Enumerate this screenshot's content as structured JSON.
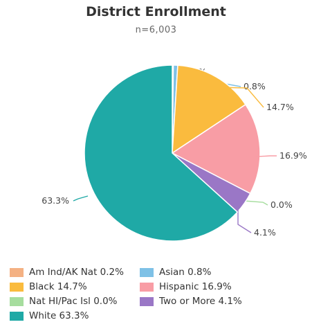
{
  "chart_data": {
    "type": "pie",
    "title": "District Enrollment",
    "subtitle": "n=6,003",
    "slices": [
      {
        "name": "Am Ind/AK Nat",
        "value": 0.2,
        "label": "0.2%",
        "legend": "Am Ind/AK Nat 0.2%",
        "color": "#F4B183"
      },
      {
        "name": "Asian",
        "value": 0.8,
        "label": "0.8%",
        "legend": "Asian 0.8%",
        "color": "#7EC1E6"
      },
      {
        "name": "Black",
        "value": 14.7,
        "label": "14.7%",
        "legend": "Black 14.7%",
        "color": "#FABB3E"
      },
      {
        "name": "Hispanic",
        "value": 16.9,
        "label": "16.9%",
        "legend": "Hispanic 16.9%",
        "color": "#F89DA5"
      },
      {
        "name": "Nat HI/Pac Isl",
        "value": 0.0,
        "label": "0.0%",
        "legend": "Nat HI/Pac Isl 0.0%",
        "color": "#A6DD9E"
      },
      {
        "name": "Two or More",
        "value": 4.1,
        "label": "4.1%",
        "legend": "Two or More 4.1%",
        "color": "#9A77C6"
      },
      {
        "name": "White",
        "value": 63.3,
        "label": "63.3%",
        "legend": "White 63.3%",
        "color": "#1FA9A6"
      }
    ],
    "legend_placement": "bottom",
    "legend_order": [
      "Am Ind/AK Nat",
      "Asian",
      "Black",
      "Hispanic",
      "Nat HI/Pac Isl",
      "Two or More",
      "White"
    ]
  }
}
